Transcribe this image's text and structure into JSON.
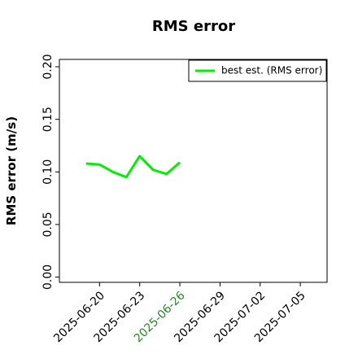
{
  "chart_data": {
    "type": "line",
    "title": "RMS error",
    "ylabel": "RMS error (m/s)",
    "x": [
      "2025-06-19",
      "2025-06-20",
      "2025-06-21",
      "2025-06-22",
      "2025-06-23",
      "2025-06-24",
      "2025-06-25",
      "2025-06-26"
    ],
    "series": [
      {
        "name": "best est. (RMS error)",
        "color": "#00ee00",
        "values": [
          0.108,
          0.107,
          0.1,
          0.095,
          0.115,
          0.102,
          0.098,
          0.109
        ]
      }
    ],
    "xlim": [
      "2025-06-17",
      "2025-07-07"
    ],
    "xticks": [
      "2025-06-20",
      "2025-06-23",
      "2025-06-26",
      "2025-06-29",
      "2025-07-02",
      "2025-07-05"
    ],
    "highlight_xtick": {
      "value": "2025-06-26",
      "color": "#228b22"
    },
    "ylim": [
      -0.005,
      0.207
    ],
    "yticks": [
      {
        "value": 0,
        "label": "0.00"
      },
      {
        "value": 0.05,
        "label": "0.05"
      },
      {
        "value": 0.1,
        "label": "0.10"
      },
      {
        "value": 0.15,
        "label": "0.15"
      },
      {
        "value": 0.2,
        "label": "0.20"
      }
    ],
    "legend": "upper right"
  }
}
